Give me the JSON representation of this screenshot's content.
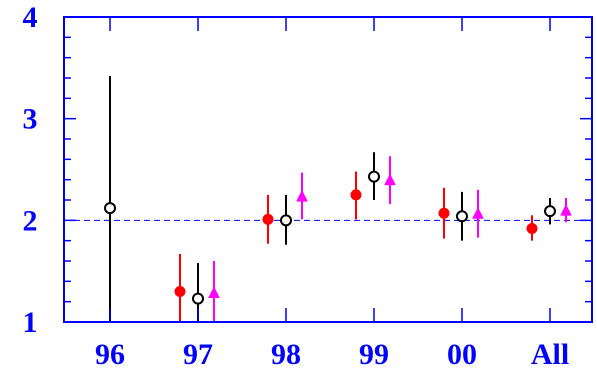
{
  "chart_data": {
    "type": "scatter",
    "title": "",
    "xlabel": "",
    "ylabel": "",
    "categories": [
      "96",
      "97",
      "98",
      "99",
      "00",
      "All"
    ],
    "y_tick_labels": [
      "1",
      "2",
      "3",
      "4"
    ],
    "ylim": [
      1,
      4
    ],
    "reference_line": 2,
    "grid": false,
    "series": [
      {
        "marker": "filled-circle",
        "color": "#ff0000",
        "points": [
          {
            "category": "97",
            "y": 1.3,
            "low": 1.0,
            "high": 1.67
          },
          {
            "category": "98",
            "y": 2.01,
            "low": 1.77,
            "high": 2.25
          },
          {
            "category": "99",
            "y": 2.25,
            "low": 2.01,
            "high": 2.48
          },
          {
            "category": "00",
            "y": 2.07,
            "low": 1.82,
            "high": 2.32
          },
          {
            "category": "All",
            "y": 1.92,
            "low": 1.8,
            "high": 2.05
          }
        ]
      },
      {
        "marker": "open-circle",
        "color": "#000000",
        "points": [
          {
            "category": "96",
            "y": 2.12,
            "low": 1.0,
            "high": 3.42
          },
          {
            "category": "97",
            "y": 1.23,
            "low": 1.0,
            "high": 1.58
          },
          {
            "category": "98",
            "y": 2.0,
            "low": 1.76,
            "high": 2.25
          },
          {
            "category": "99",
            "y": 2.43,
            "low": 2.2,
            "high": 2.67
          },
          {
            "category": "00",
            "y": 2.04,
            "low": 1.8,
            "high": 2.28
          },
          {
            "category": "All",
            "y": 2.09,
            "low": 1.96,
            "high": 2.22
          }
        ]
      },
      {
        "marker": "filled-triangle",
        "color": "#ff00ff",
        "points": [
          {
            "category": "97",
            "y": 1.28,
            "low": 1.0,
            "high": 1.6
          },
          {
            "category": "98",
            "y": 2.23,
            "low": 2.01,
            "high": 2.47
          },
          {
            "category": "99",
            "y": 2.39,
            "low": 2.16,
            "high": 2.63
          },
          {
            "category": "00",
            "y": 2.06,
            "low": 1.83,
            "high": 2.3
          },
          {
            "category": "All",
            "y": 2.09,
            "low": 1.98,
            "high": 2.22
          }
        ]
      }
    ],
    "colors": {
      "axis": "#0000ff",
      "labels": "#0000ff",
      "reference_line": "#0000ff"
    }
  }
}
